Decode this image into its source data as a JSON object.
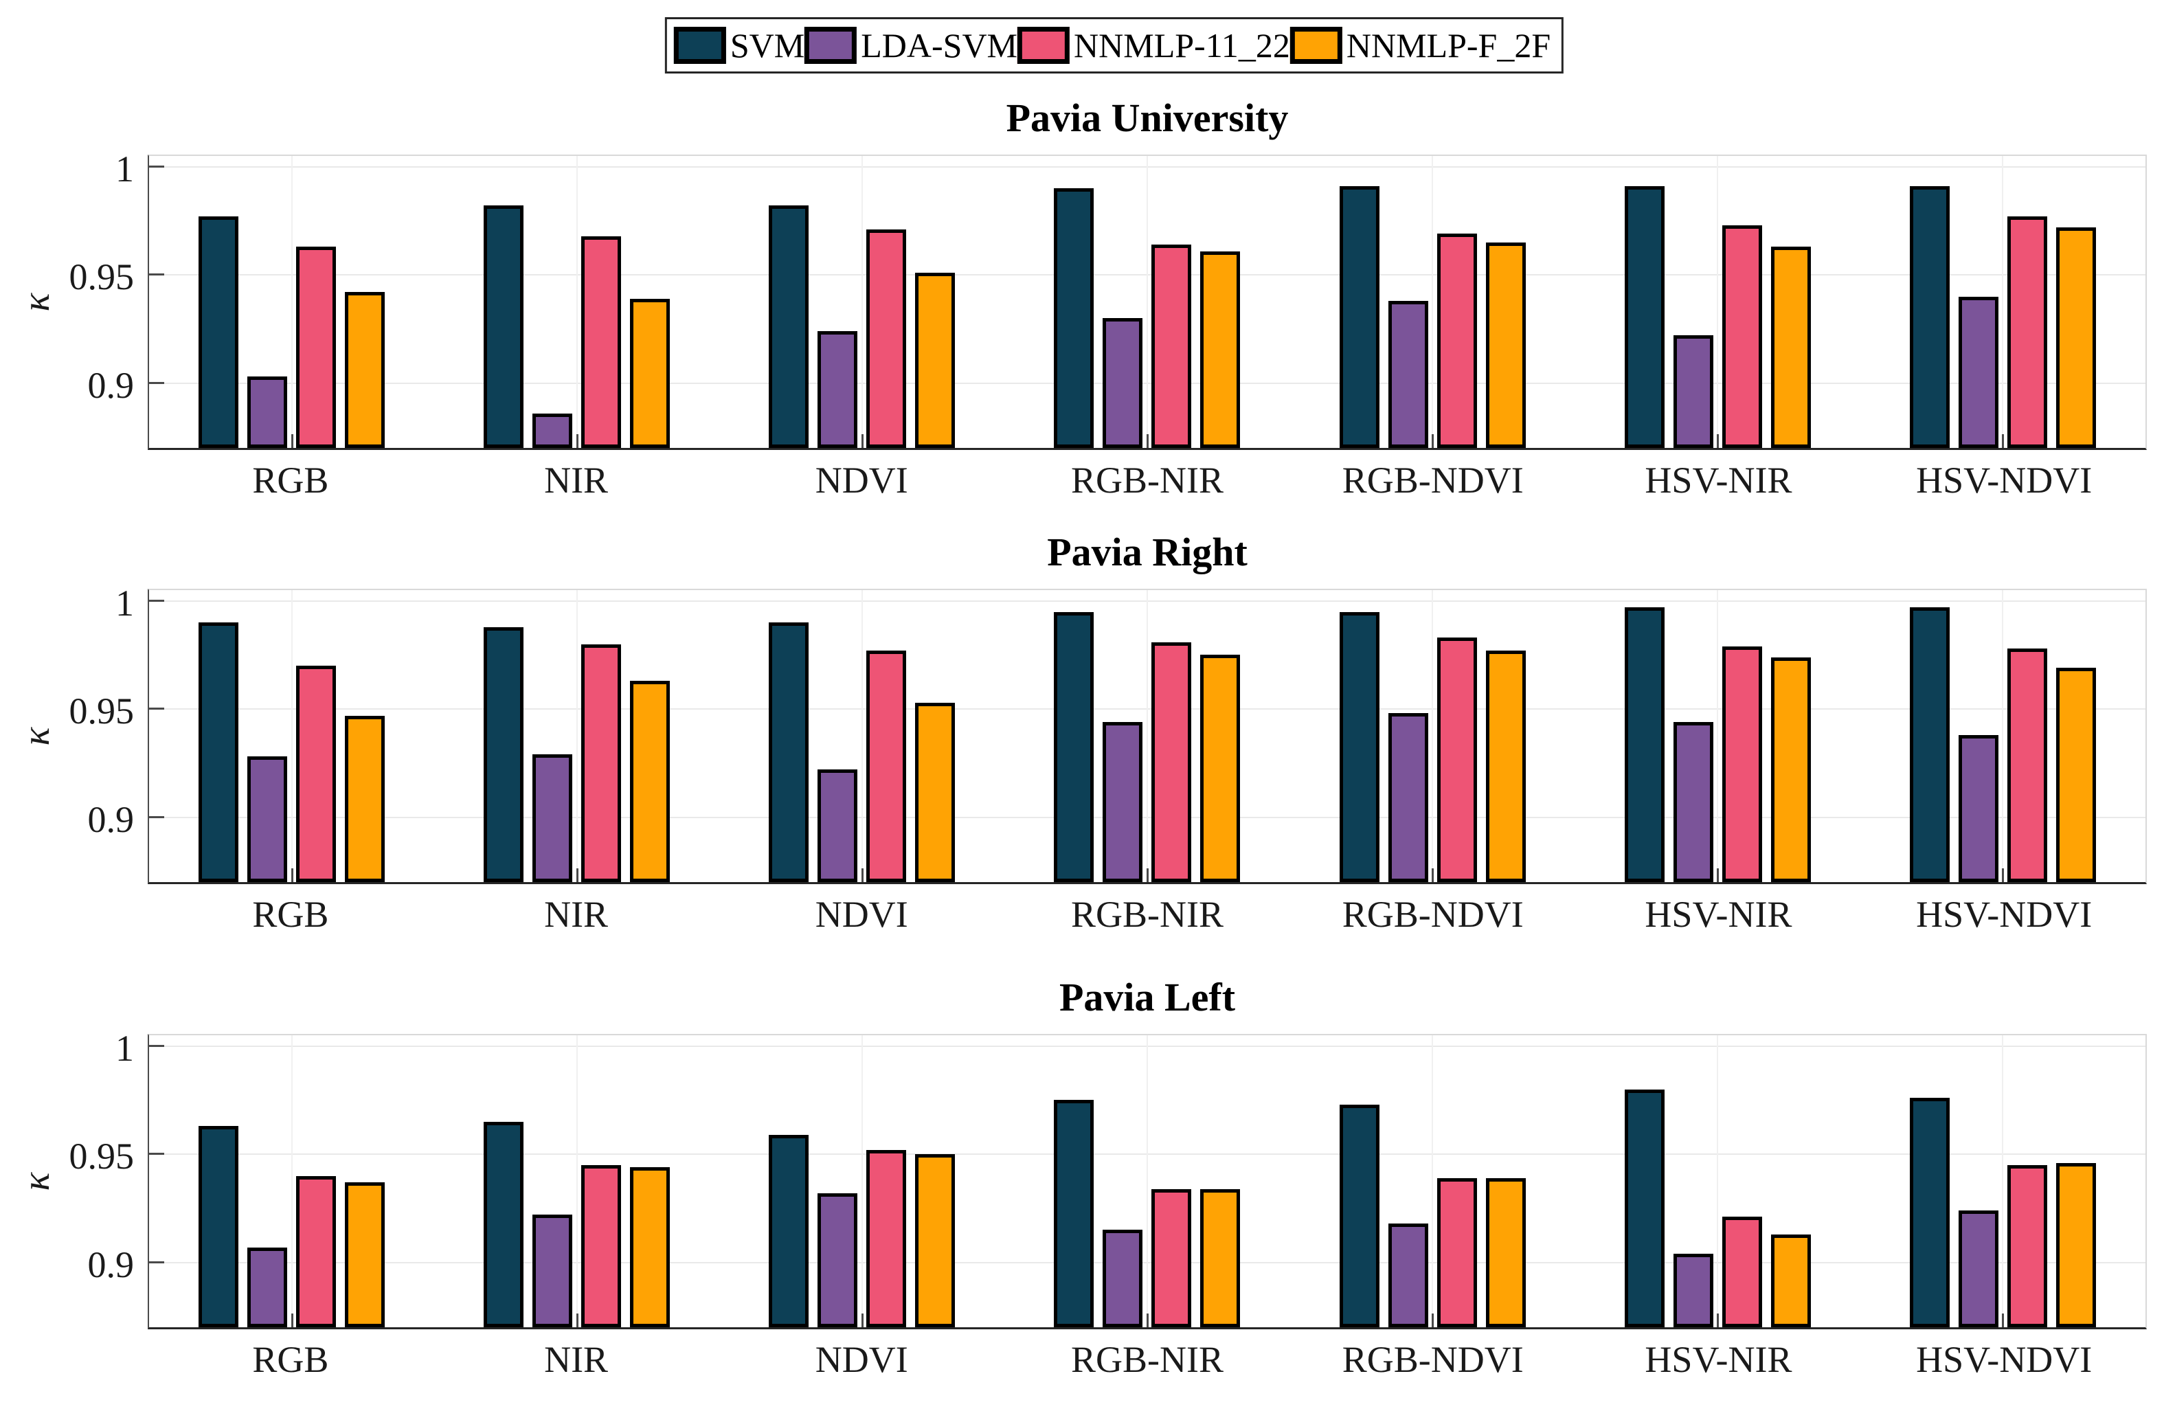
{
  "chart_data": {
    "type": "bar",
    "grouped": true,
    "grid": true,
    "legend_position": "top-center",
    "ylabel": "κ",
    "ylim": [
      0.87,
      1.0066
    ],
    "yticks": [
      {
        "label": "1",
        "value": 1.0
      },
      {
        "label": "0.95",
        "value": 0.95
      },
      {
        "label": "0.9",
        "value": 0.9
      }
    ],
    "categories": [
      "RGB",
      "NIR",
      "NDVI",
      "RGB-NIR",
      "RGB-NDVI",
      "HSV-NIR",
      "HSV-NDVI"
    ],
    "series_names": [
      "SVM",
      "LDA-SVM",
      "NNMLP-11_22",
      "NNMLP-F_2F"
    ],
    "series_colors": [
      "#0d4056",
      "#7b5499",
      "#ee5475",
      "#ffa304"
    ],
    "panels": [
      {
        "title": "Pavia University",
        "series": [
          {
            "name": "SVM",
            "values": [
              0.977,
              0.982,
              0.982,
              0.99,
              0.991,
              0.991,
              0.991
            ]
          },
          {
            "name": "LDA-SVM",
            "values": [
              0.903,
              0.886,
              0.924,
              0.93,
              0.938,
              0.922,
              0.94
            ]
          },
          {
            "name": "NNMLP-11_22",
            "values": [
              0.963,
              0.968,
              0.971,
              0.964,
              0.969,
              0.973,
              0.977
            ]
          },
          {
            "name": "NNMLP-F_2F",
            "values": [
              0.942,
              0.939,
              0.951,
              0.961,
              0.965,
              0.963,
              0.972
            ]
          }
        ]
      },
      {
        "title": "Pavia Right",
        "series": [
          {
            "name": "SVM",
            "values": [
              0.99,
              0.988,
              0.99,
              0.995,
              0.995,
              0.997,
              0.997
            ]
          },
          {
            "name": "LDA-SVM",
            "values": [
              0.928,
              0.929,
              0.922,
              0.944,
              0.948,
              0.944,
              0.938
            ]
          },
          {
            "name": "NNMLP-11_22",
            "values": [
              0.97,
              0.98,
              0.977,
              0.981,
              0.983,
              0.979,
              0.978
            ]
          },
          {
            "name": "NNMLP-F_2F",
            "values": [
              0.947,
              0.963,
              0.953,
              0.975,
              0.977,
              0.974,
              0.969
            ]
          }
        ]
      },
      {
        "title": "Pavia Left",
        "series": [
          {
            "name": "SVM",
            "values": [
              0.963,
              0.965,
              0.959,
              0.975,
              0.973,
              0.98,
              0.976
            ]
          },
          {
            "name": "LDA-SVM",
            "values": [
              0.907,
              0.922,
              0.932,
              0.915,
              0.918,
              0.904,
              0.924
            ]
          },
          {
            "name": "NNMLP-11_22",
            "values": [
              0.94,
              0.945,
              0.952,
              0.934,
              0.939,
              0.921,
              0.945
            ]
          },
          {
            "name": "NNMLP-F_2F",
            "values": [
              0.937,
              0.944,
              0.95,
              0.934,
              0.939,
              0.913,
              0.946
            ]
          }
        ]
      }
    ]
  }
}
